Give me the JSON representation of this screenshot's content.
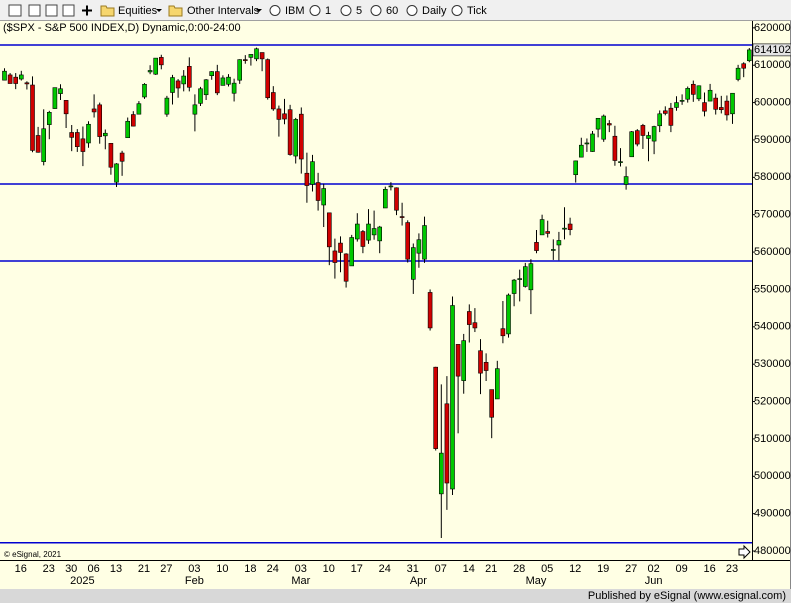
{
  "toolbar": {
    "items": [
      "Equities",
      "Other Intervals",
      "IBM",
      "1",
      "5",
      "60",
      "Daily",
      "Tick"
    ]
  },
  "footer": "Published by eSignal (www.esignal.com)",
  "chart_data": {
    "type": "candlestick",
    "title": "($SPX - S&P 500 INDEX,D) Dynamic,0:00-24:00",
    "watermark": "© eSignal, 2021",
    "categories": [
      null,
      null,
      null,
      "16",
      null,
      null,
      null,
      null,
      "23",
      null,
      null,
      null,
      "30",
      null,
      null,
      null,
      "06",
      null,
      null,
      null,
      "13",
      null,
      null,
      null,
      null,
      "21",
      null,
      null,
      null,
      "27",
      null,
      null,
      null,
      null,
      "03",
      null,
      null,
      null,
      null,
      "10",
      null,
      null,
      null,
      null,
      "18",
      null,
      null,
      null,
      "24",
      null,
      null,
      null,
      null,
      "03",
      null,
      null,
      null,
      null,
      "10",
      null,
      null,
      null,
      null,
      "17",
      null,
      null,
      null,
      null,
      "24",
      null,
      null,
      null,
      null,
      "31",
      null,
      null,
      null,
      null,
      "07",
      null,
      null,
      null,
      null,
      "14",
      null,
      null,
      null,
      "21",
      null,
      null,
      null,
      null,
      "28",
      null,
      null,
      null,
      null,
      "05",
      null,
      null,
      null,
      null,
      "12",
      null,
      null,
      null,
      null,
      "19",
      null,
      null,
      null,
      null,
      "27",
      null,
      null,
      null,
      "02",
      null,
      null,
      null,
      null,
      "09",
      null,
      null,
      null,
      null,
      "16",
      null,
      null,
      null,
      "23",
      null,
      null,
      null
    ],
    "category_groups": [
      null,
      null,
      null,
      null,
      null,
      null,
      null,
      null,
      null,
      null,
      null,
      null,
      null,
      null,
      "2025",
      null,
      null,
      null,
      null,
      null,
      null,
      null,
      null,
      null,
      null,
      null,
      null,
      null,
      null,
      null,
      null,
      null,
      null,
      null,
      "Feb",
      null,
      null,
      null,
      null,
      null,
      null,
      null,
      null,
      null,
      null,
      null,
      null,
      null,
      null,
      null,
      null,
      null,
      null,
      "Mar",
      null,
      null,
      null,
      null,
      null,
      null,
      null,
      null,
      null,
      null,
      null,
      null,
      null,
      null,
      null,
      null,
      null,
      null,
      null,
      null,
      "Apr",
      null,
      null,
      null,
      null,
      null,
      null,
      null,
      null,
      null,
      null,
      null,
      null,
      null,
      null,
      null,
      null,
      null,
      null,
      null,
      null,
      "May",
      null,
      null,
      null,
      null,
      null,
      null,
      null,
      null,
      null,
      null,
      null,
      null,
      null,
      null,
      null,
      null,
      null,
      null,
      null,
      null,
      "Jun",
      null,
      null,
      null,
      null,
      null,
      null,
      null,
      null,
      null,
      null,
      null,
      null,
      null,
      null,
      null,
      null,
      null
    ],
    "open": [
      606000,
      607400,
      606800,
      606300,
      605300,
      604700,
      591200,
      584200,
      594100,
      598400,
      602400,
      600600,
      592000,
      592000,
      590300,
      589200,
      598300,
      599400,
      591100,
      589100,
      578700,
      586500,
      590600,
      596800,
      596900,
      601500,
      608200,
      607600,
      612100,
      596900,
      602700,
      605800,
      605000,
      609700,
      596900,
      599800,
      602100,
      607200,
      608300,
      604600,
      604900,
      602500,
      606000,
      611500,
      612100,
      611700,
      613400,
      611500,
      602700,
      598300,
      597000,
      598100,
      585700,
      596900,
      581100,
      578100,
      578600,
      572600,
      570500,
      560300,
      562400,
      559500,
      556300,
      563500,
      565500,
      563200,
      564600,
      563000,
      571800,
      577500,
      577200,
      569500,
      567900,
      552700,
      559700,
      558100,
      549200,
      529200,
      495300,
      519400,
      496600,
      535300,
      525600,
      544100,
      541100,
      533600,
      530500,
      523200,
      520700,
      539500,
      538100,
      548900,
      552900,
      550800,
      549900,
      562600,
      564600,
      565500,
      560600,
      561900,
      566300,
      567500,
      580700,
      585400,
      589000,
      586900,
      592900,
      590200,
      594400,
      591000,
      584100,
      578100,
      585500,
      592500,
      593900,
      590400,
      589700,
      593800,
      597800,
      598500,
      598700,
      600500,
      600900,
      604900,
      601000,
      600000,
      600400,
      601200,
      598700,
      600400,
      597000,
      606200,
      610400,
      611200
    ],
    "high": [
      609200,
      607900,
      607900,
      608500,
      605700,
      607000,
      593500,
      598200,
      597800,
      604000,
      604900,
      600600,
      594000,
      592900,
      593600,
      595000,
      602200,
      600000,
      592800,
      589100,
      583800,
      587100,
      596000,
      597700,
      600400,
      605200,
      610000,
      611900,
      612800,
      601800,
      607400,
      606300,
      608700,
      612100,
      602200,
      604200,
      606300,
      608400,
      610100,
      607300,
      607600,
      606400,
      611600,
      612700,
      612900,
      614700,
      613400,
      611800,
      604400,
      599200,
      601000,
      599400,
      595900,
      598700,
      586600,
      586000,
      581200,
      578300,
      570500,
      563600,
      564200,
      559700,
      564600,
      570400,
      565900,
      571500,
      571100,
      567000,
      577500,
      578700,
      577300,
      573200,
      568500,
      562300,
      565000,
      569500,
      550000,
      529300,
      524600,
      526800,
      548100,
      535300,
      538100,
      546000,
      545000,
      536700,
      532900,
      523200,
      530900,
      546900,
      548900,
      552800,
      555300,
      557100,
      558100,
      565900,
      570000,
      568400,
      563400,
      565400,
      572000,
      569200,
      584500,
      590600,
      590400,
      592400,
      595800,
      596800,
      595300,
      593800,
      587800,
      582900,
      592400,
      592900,
      594300,
      592200,
      593800,
      597900,
      599000,
      599900,
      601700,
      602200,
      604300,
      605900,
      604600,
      602700,
      605000,
      602400,
      601800,
      601900,
      602500,
      610100,
      610800,
      614600
    ],
    "low": [
      606000,
      605100,
      603600,
      605900,
      603500,
      586700,
      586600,
      583200,
      590200,
      598300,
      600700,
      593200,
      587000,
      586800,
      583000,
      587900,
      596000,
      589000,
      587500,
      580700,
      577400,
      580400,
      590600,
      593600,
      596900,
      601000,
      607600,
      607400,
      608900,
      596200,
      599500,
      601300,
      603000,
      603000,
      592300,
      599100,
      600700,
      606100,
      602000,
      604600,
      604300,
      600300,
      605000,
      610400,
      609900,
      611100,
      608400,
      600800,
      597800,
      590900,
      594200,
      585800,
      583700,
      581000,
      573200,
      576200,
      571100,
      566700,
      556500,
      552900,
      554600,
      550500,
      556300,
      562800,
      559700,
      562200,
      563300,
      559700,
      571800,
      576500,
      569900,
      567100,
      557200,
      548800,
      555800,
      557100,
      539000,
      506900,
      483500,
      491000,
      495000,
      511500,
      522100,
      535800,
      538600,
      522000,
      525500,
      510200,
      520700,
      535600,
      537100,
      545500,
      546800,
      550500,
      543400,
      559700,
      564600,
      563900,
      557900,
      557800,
      563400,
      564500,
      578600,
      585400,
      586800,
      586800,
      590700,
      589500,
      592100,
      583100,
      582900,
      576700,
      585500,
      588300,
      587600,
      584300,
      586200,
      592100,
      596600,
      592100,
      597800,
      599400,
      600000,
      600200,
      600400,
      596300,
      600400,
      596800,
      597100,
      595200,
      594300,
      605700,
      606800,
      610800
    ],
    "close": [
      608400,
      605100,
      605100,
      607400,
      605000,
      587200,
      586700,
      593000,
      597400,
      604000,
      603700,
      597000,
      590700,
      588200,
      586900,
      594200,
      597500,
      590900,
      591800,
      582700,
      583600,
      584300,
      595000,
      593700,
      599700,
      604900,
      608600,
      611900,
      610100,
      601200,
      606700,
      603900,
      607100,
      604100,
      599400,
      603700,
      606100,
      608300,
      602600,
      606600,
      606800,
      605200,
      611500,
      611400,
      612900,
      614400,
      611700,
      601300,
      598300,
      595500,
      595600,
      586100,
      595500,
      584900,
      577800,
      584200,
      573800,
      577000,
      561400,
      557200,
      559900,
      552200,
      563900,
      567500,
      561500,
      567500,
      566300,
      566700,
      576800,
      577700,
      571200,
      569300,
      558100,
      561200,
      563300,
      567100,
      539700,
      507400,
      506200,
      498200,
      545700,
      526800,
      536300,
      540600,
      539700,
      527600,
      528300,
      515800,
      528800,
      537600,
      548500,
      552500,
      552900,
      556100,
      556900,
      560400,
      568700,
      565000,
      560700,
      563100,
      566400,
      566000,
      584400,
      588600,
      589200,
      591600,
      595800,
      596400,
      594000,
      584500,
      584200,
      580200,
      592200,
      588900,
      591200,
      591200,
      593600,
      597000,
      597100,
      593900,
      600000,
      600600,
      603800,
      602200,
      604500,
      597700,
      603300,
      598200,
      598100,
      596700,
      602500,
      609200,
      609200,
      614102
    ],
    "up_color": "#00c800",
    "down_color": "#d00000",
    "horizontal_lines": [
      615400,
      578200,
      557600,
      482200
    ],
    "line_color": "#0000d0",
    "ylim": [
      477600,
      622100
    ],
    "yticks": [
      480000,
      490000,
      500000,
      510000,
      520000,
      530000,
      540000,
      550000,
      560000,
      570000,
      580000,
      590000,
      600000,
      610000,
      620000
    ],
    "grid": false
  }
}
